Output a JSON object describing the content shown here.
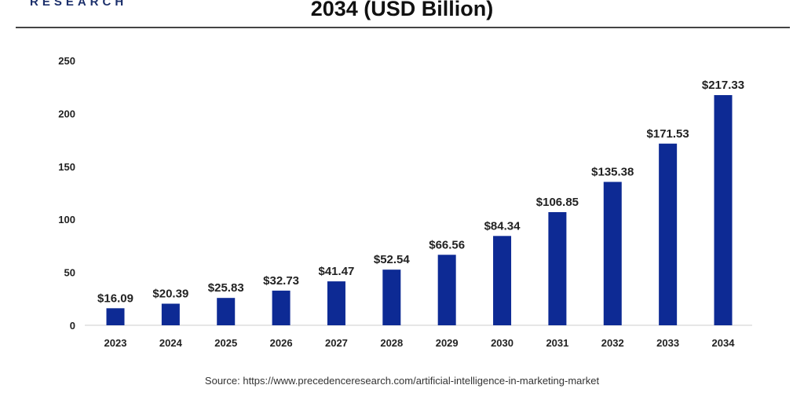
{
  "header": {
    "brand": "RESEARCH",
    "title": "2034 (USD Billion)"
  },
  "source": "Source: https://www.precedenceresearch.com/artificial-intelligence-in-marketing-market",
  "colors": {
    "bar": "#0d2a94",
    "axis": "#cccccc",
    "text": "#222222"
  },
  "chart_data": {
    "type": "bar",
    "title": "2034 (USD Billion)",
    "xlabel": "",
    "ylabel": "",
    "categories": [
      "2023",
      "2024",
      "2025",
      "2026",
      "2027",
      "2028",
      "2029",
      "2030",
      "2031",
      "2032",
      "2033",
      "2034"
    ],
    "values": [
      16.09,
      20.39,
      25.83,
      32.73,
      41.47,
      52.54,
      66.56,
      84.34,
      106.85,
      135.38,
      171.53,
      217.33
    ],
    "data_labels": [
      "$16.09",
      "$20.39",
      "$25.83",
      "$32.73",
      "$41.47",
      "$52.54",
      "$66.56",
      "$84.34",
      "$106.85",
      "$135.38",
      "$171.53",
      "$217.33"
    ],
    "ylim": [
      0,
      250
    ],
    "yticks": [
      0,
      50,
      100,
      150,
      200,
      250
    ],
    "grid": false,
    "legend": "none"
  }
}
